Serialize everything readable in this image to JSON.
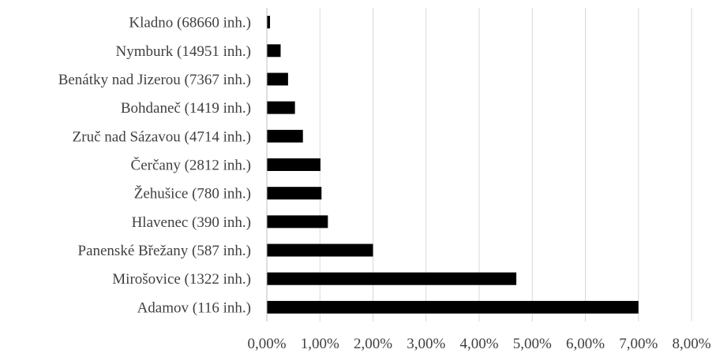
{
  "chart_data": {
    "type": "bar",
    "orientation": "horizontal",
    "title": "",
    "xlabel": "",
    "ylabel": "",
    "categories": [
      "Adamov (116 inh.)",
      "Mirošovice (1322 inh.)",
      "Panenské Břežany (587 inh.)",
      "Hlavenec (390 inh.)",
      "Žehušice (780 inh.)",
      "Čerčany (2812 inh.)",
      "Zruč nad Sázavou (4714 inh.)",
      "Bohdaneč (1419 inh.)",
      "Benátky nad Jizerou (7367 inh.)",
      "Nymburk (14951 inh.)",
      "Kladno (68660 inh.)"
    ],
    "values": [
      7.0,
      4.7,
      2.0,
      1.15,
      1.03,
      1.01,
      0.68,
      0.53,
      0.4,
      0.26,
      0.06
    ],
    "value_unit": "%",
    "xlim": [
      0,
      8
    ],
    "x_ticks": [
      "0,00%",
      "1,00%",
      "2,00%",
      "3,00%",
      "4,00%",
      "5,00%",
      "6,00%",
      "7,00%",
      "8,00%"
    ],
    "grid": "vertical",
    "legend": "none",
    "colors": {
      "bar": "#000000",
      "grid": "#d9d9d9",
      "axis": "#bfbfbf",
      "text": "#404040"
    }
  }
}
